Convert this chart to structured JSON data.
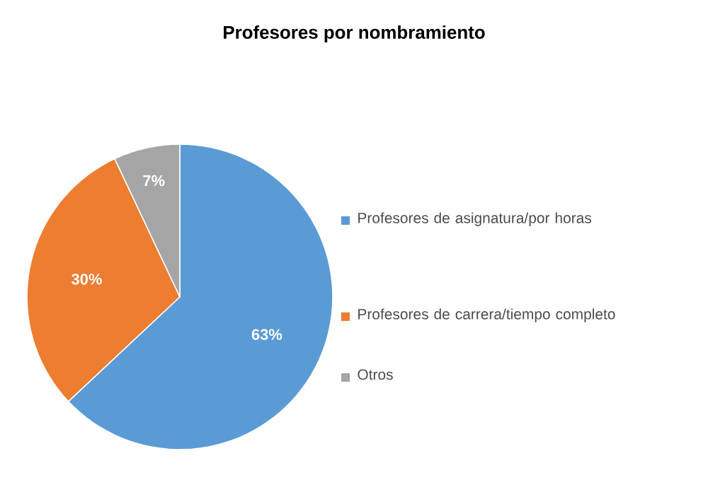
{
  "chart_data": {
    "type": "pie",
    "title": "Profesores por nombramiento",
    "categories": [
      "Profesores de asignatura/por horas",
      "Profesores de carrera/tiempo completo",
      "Otros"
    ],
    "values": [
      63,
      30,
      7
    ],
    "value_labels": [
      "63%",
      "30%",
      "7%"
    ],
    "colors": [
      "#5b9bd5",
      "#ed7d31",
      "#a5a5a5"
    ],
    "legend": "right"
  }
}
